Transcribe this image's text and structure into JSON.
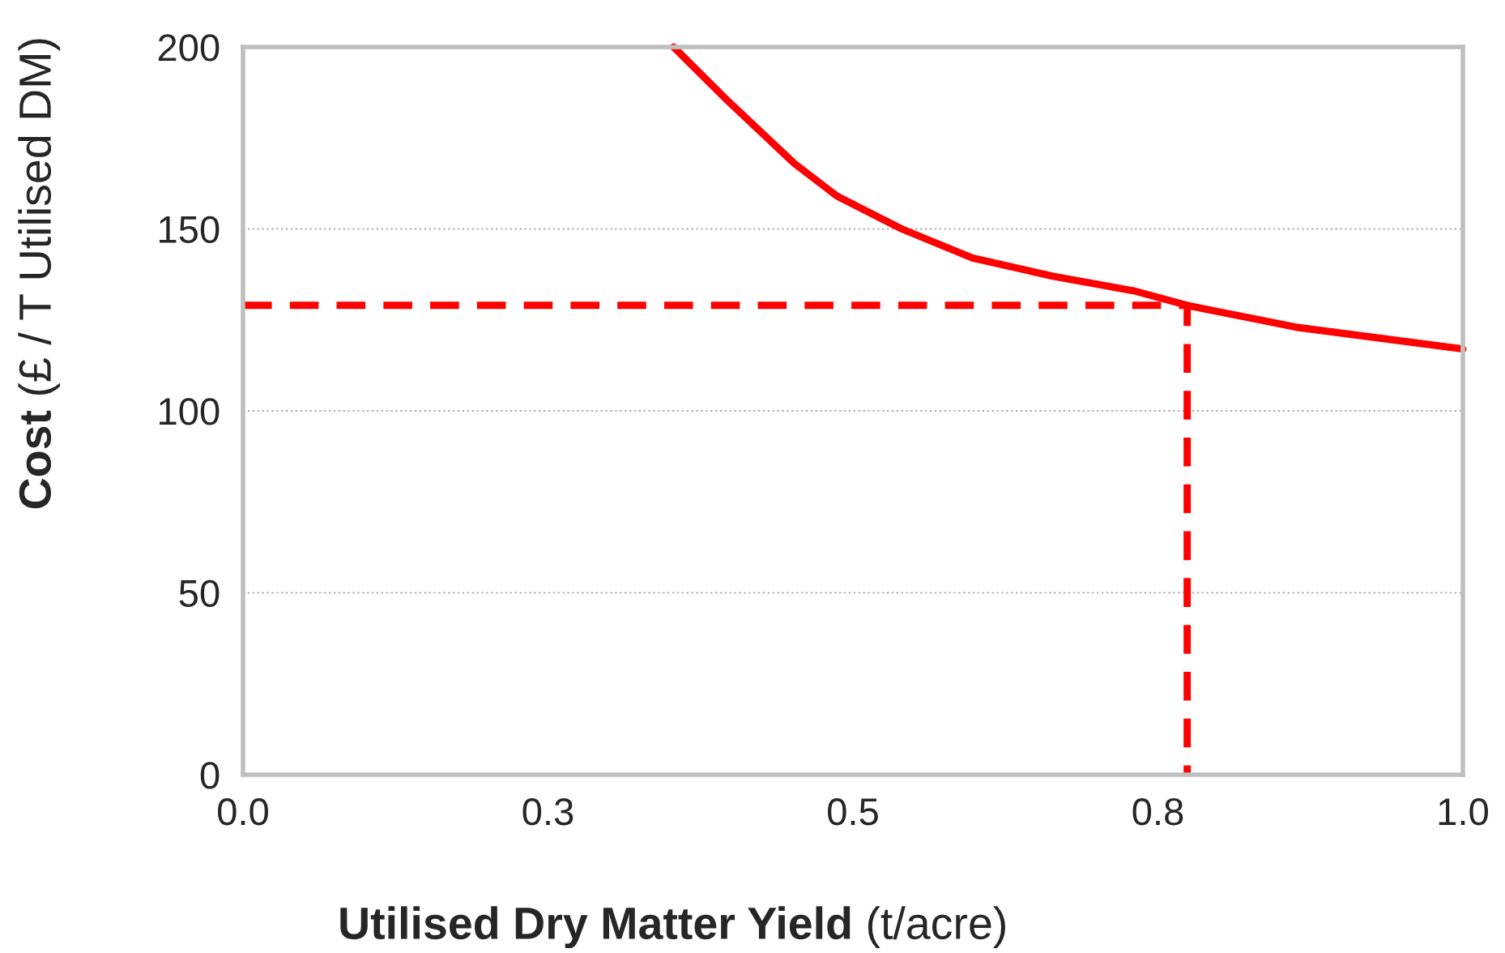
{
  "chart_data": {
    "type": "line",
    "xlabel": "Utilised Dry Matter Yield (t/acre)",
    "ylabel": "Cost (£ / T Utilised DM)",
    "series": [
      {
        "color": "#ff0000",
        "line_style": "solid",
        "x": [
          0.353,
          0.398,
          0.452,
          0.487,
          0.54,
          0.598,
          0.664,
          0.73,
          0.774,
          0.863,
          1.0
        ],
        "values": [
          200,
          185,
          168,
          159,
          150,
          142,
          137,
          133,
          129,
          123,
          117
        ]
      },
      {
        "color": "#ff0000",
        "line_style": "dashed",
        "x": [
          0,
          0.774,
          0.774
        ],
        "values": [
          129,
          129,
          0
        ]
      }
    ],
    "xlim": [
      0,
      1.0
    ],
    "xticks": [
      {
        "value": 0,
        "label": "0.0"
      },
      {
        "value": 0.25,
        "label": "0.3"
      },
      {
        "value": 0.5,
        "label": "0.5"
      },
      {
        "value": 0.75,
        "label": "0.8"
      },
      {
        "value": 1.0,
        "label": "1.0"
      }
    ],
    "ylim": [
      0,
      200
    ],
    "yticks": [
      0,
      50,
      100,
      150,
      200
    ],
    "grid": "y",
    "legend": false
  }
}
